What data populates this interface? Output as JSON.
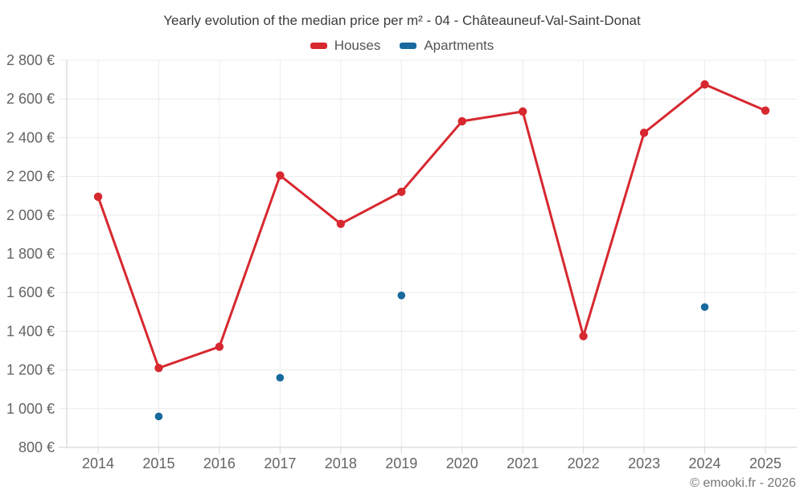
{
  "title": "Yearly evolution of the median price per m² - 04 - Châteauneuf-Val-Saint-Donat",
  "footer": "© emooki.fr - 2026",
  "colors": {
    "houses": "#d7282f",
    "apartments": "#17699e",
    "grid": "#ececec",
    "axis": "#cccccc",
    "tick": "#d9d9d9",
    "tick_label": "#646464",
    "title_text": "#3c3c3c",
    "legend_text": "#545454",
    "footer_text": "#757575",
    "background": "#ffffff"
  },
  "chart_data": {
    "type": "line",
    "title": "Yearly evolution of the median price per m² - 04 - Châteauneuf-Val-Saint-Donat",
    "categories": [
      "2014",
      "2015",
      "2016",
      "2017",
      "2018",
      "2019",
      "2020",
      "2021",
      "2022",
      "2023",
      "2024",
      "2025"
    ],
    "series": [
      {
        "name": "Houses",
        "type": "line",
        "color_key": "houses",
        "values": [
          2095,
          1210,
          1320,
          2205,
          1955,
          2120,
          2485,
          2535,
          1375,
          2425,
          2675,
          2540
        ]
      },
      {
        "name": "Apartments",
        "type": "scatter",
        "color_key": "apartments",
        "values": [
          null,
          960,
          null,
          1160,
          null,
          1585,
          null,
          null,
          null,
          null,
          1525,
          null
        ]
      }
    ],
    "xlabel": "",
    "ylabel": "",
    "ylim": [
      800,
      2800
    ],
    "ytick_step": 200,
    "ytick_labels": [
      "800 €",
      "1 000 €",
      "1 200 €",
      "1 400 €",
      "1 600 €",
      "1 800 €",
      "2 000 €",
      "2 200 €",
      "2 400 €",
      "2 600 €",
      "2 800 €"
    ],
    "grid": true,
    "legend_position": "top",
    "legend": [
      "Houses",
      "Apartments"
    ]
  }
}
